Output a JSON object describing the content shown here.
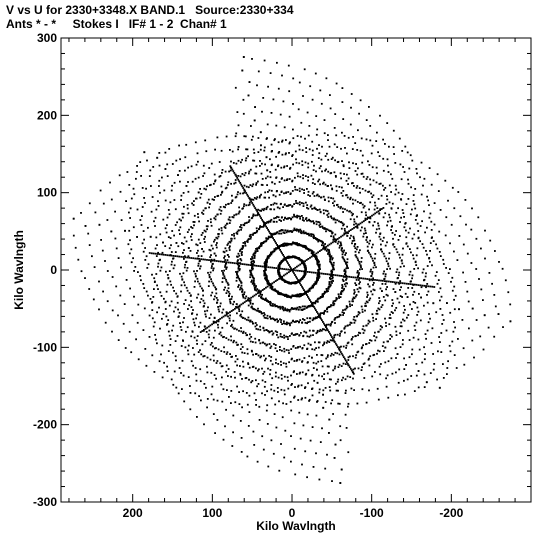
{
  "header": {
    "line1": "V vs U for 2330+3348.X BAND.1   Source:2330+334",
    "line2": "Ants * - *     Stokes I   IF# 1 - 2  Chan# 1"
  },
  "chart_data": {
    "type": "scatter",
    "title": "V vs U for 2330+3348.X BAND.1   Source:2330+334",
    "subtitle": "Ants * - *     Stokes I   IF# 1 - 2  Chan# 1",
    "xlabel": "Kilo Wavlngth",
    "ylabel": "Kilo Wavlngth",
    "xlim": [
      290,
      -300
    ],
    "ylim": [
      -300,
      300
    ],
    "x_ticks": [
      200,
      100,
      0,
      -100,
      -200
    ],
    "x_tick_labels": [
      "200",
      "100",
      "0",
      "-100",
      "-200"
    ],
    "y_ticks": [
      -300,
      -200,
      -100,
      0,
      100,
      200,
      300
    ],
    "y_tick_labels": [
      "-300",
      "-200",
      "-100",
      "0",
      "100",
      "200",
      "300"
    ],
    "grid": false,
    "marker_color": "#000000",
    "arms": [
      {
        "angle_deg": 40,
        "length": 240
      },
      {
        "angle_deg": 77,
        "length": 282
      },
      {
        "angle_deg": 13,
        "length": 282
      },
      {
        "angle_deg": 220,
        "length": 240
      },
      {
        "angle_deg": 257,
        "length": 282
      },
      {
        "angle_deg": 193,
        "length": 282
      }
    ],
    "dense_tracks": [
      {
        "angle_deg": 60,
        "length": 155
      },
      {
        "angle_deg": 240,
        "length": 155
      },
      {
        "angle_deg": 145,
        "length": 140
      },
      {
        "angle_deg": 325,
        "length": 140
      },
      {
        "angle_deg": 7,
        "length": 180
      },
      {
        "angle_deg": 187,
        "length": 180
      }
    ]
  }
}
